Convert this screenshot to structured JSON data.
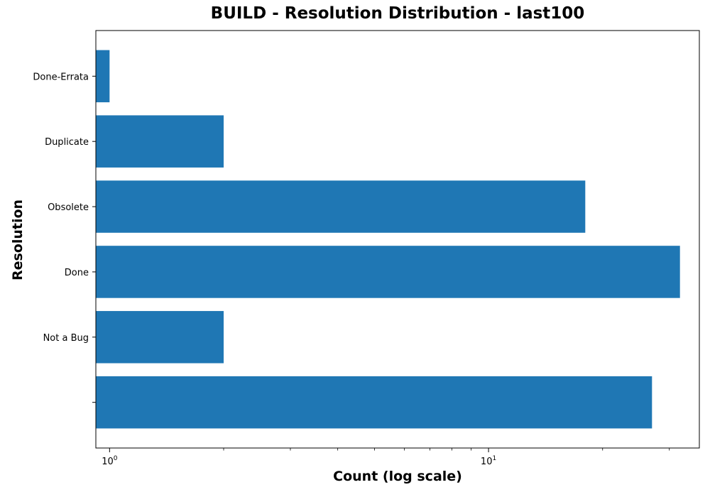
{
  "chart_data": {
    "type": "bar",
    "orientation": "horizontal",
    "title": "BUILD - Resolution Distribution - last100",
    "xlabel": "Count (log scale)",
    "ylabel": "Resolution",
    "x_scale": "log",
    "xlim": [
      0.92,
      36
    ],
    "x_ticks": [
      {
        "value": 1,
        "base": "10",
        "exp": "0"
      },
      {
        "value": 10,
        "base": "10",
        "exp": "1"
      }
    ],
    "categories": [
      "",
      "Not a Bug",
      "Done",
      "Obsolete",
      "Duplicate",
      "Done-Errata"
    ],
    "values": [
      27,
      2,
      32,
      18,
      2,
      1
    ],
    "bar_color": "#1f77b4",
    "grid": false
  }
}
